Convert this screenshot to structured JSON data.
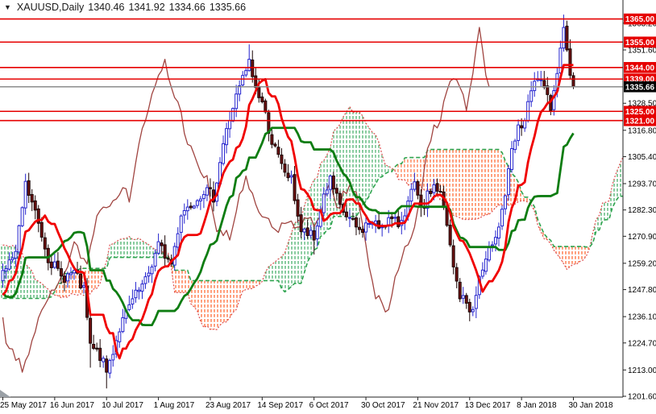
{
  "header": {
    "icon_glyph": "▼",
    "symbol_period": "XAUUSD,Daily",
    "open": "1340.46",
    "high": "1341.92",
    "low": "1334.66",
    "close": "1335.66"
  },
  "colors": {
    "background": "#FFFFFF",
    "axis_line": "#222222",
    "axis_text": "#000000",
    "level_red": "#E60000",
    "level_badge_bg": "#E60000",
    "level_badge_text": "#FFFFFF",
    "current_price_line": "#8C8C8C",
    "current_price_badge_bg": "#000000",
    "current_price_badge_text": "#FFFFFF",
    "bull_body": "#FFFFFF",
    "bull_border": "#2524CE",
    "bear_body": "#6E1111",
    "bear_border": "#1A0505",
    "tenkan_line": "#F00000",
    "kijun_line": "#0E7D12",
    "chikou_line": "#A04440",
    "senkou_a_line": "#DD4F4F",
    "senkou_b_line": "#2FA44F",
    "cloud_up_hatch": "#2FA457",
    "cloud_down_hatch": "#FF5A1E",
    "corner_marker": "#9AA0A6"
  },
  "chart_data": {
    "type": "candlestick",
    "symbol": "XAUUSD",
    "timeframe": "Daily",
    "title": "XAUUSD,Daily 1340.46 1341.92 1334.66 1335.66",
    "indicator": {
      "name": "Ichimoku Kinko Hyo",
      "tenkan": 9,
      "kijun": 26,
      "senkou_b": 52,
      "shift": 26
    },
    "grid": "off",
    "legend_position": "none",
    "y_axis": {
      "side": "right",
      "range": [
        1201.25,
        1367.65
      ],
      "ticks": [
        "1363.20",
        "1351.60",
        "1328.50",
        "1316.80",
        "1305.40",
        "1293.70",
        "1282.30",
        "1270.90",
        "1259.20",
        "1247.80",
        "1236.10",
        "1224.70",
        "1213.00",
        "1201.60"
      ]
    },
    "x_axis": {
      "labels": [
        {
          "text": "25 May 2017",
          "bar": 0
        },
        {
          "text": "16 Jun 2017",
          "bar": 16
        },
        {
          "text": "10 Jul 2017",
          "bar": 32
        },
        {
          "text": "1 Aug 2017",
          "bar": 48
        },
        {
          "text": "23 Aug 2017",
          "bar": 64
        },
        {
          "text": "14 Sep 2017",
          "bar": 80
        },
        {
          "text": "6 Oct 2017",
          "bar": 96
        },
        {
          "text": "30 Oct 2017",
          "bar": 112
        },
        {
          "text": "21 Nov 2017",
          "bar": 128
        },
        {
          "text": "13 Dec 2017",
          "bar": 144
        },
        {
          "text": "8 Jan 2018",
          "bar": 160
        },
        {
          "text": "30 Jan 2018",
          "bar": 176
        }
      ]
    },
    "horizontal_levels": [
      "1365.00",
      "1355.00",
      "1344.00",
      "1339.00",
      "1325.00",
      "1321.00"
    ],
    "current_price": "1335.66",
    "last_candle": {
      "open": 1340.46,
      "high": 1341.92,
      "low": 1334.66,
      "close": 1335.66
    },
    "bars_pre": 78,
    "bars_visible": 177,
    "seed": 7,
    "jitter": 2.6,
    "wick_span": 3.8,
    "close_waypoints": [
      [
        -78,
        1236
      ],
      [
        -70,
        1221
      ],
      [
        -64,
        1202
      ],
      [
        -58,
        1224
      ],
      [
        -50,
        1236
      ],
      [
        -42,
        1256
      ],
      [
        -34,
        1288
      ],
      [
        -28,
        1272
      ],
      [
        -22,
        1254
      ],
      [
        -16,
        1229
      ],
      [
        -10,
        1229
      ],
      [
        -4,
        1247
      ],
      [
        0,
        1256
      ],
      [
        4,
        1263
      ],
      [
        7,
        1293
      ],
      [
        10,
        1281
      ],
      [
        14,
        1262
      ],
      [
        18,
        1253
      ],
      [
        22,
        1255
      ],
      [
        25,
        1247
      ],
      [
        27,
        1223
      ],
      [
        30,
        1219
      ],
      [
        32,
        1212
      ],
      [
        36,
        1231
      ],
      [
        40,
        1243
      ],
      [
        44,
        1251
      ],
      [
        48,
        1267
      ],
      [
        52,
        1259
      ],
      [
        55,
        1281
      ],
      [
        58,
        1285
      ],
      [
        62,
        1291
      ],
      [
        65,
        1288
      ],
      [
        68,
        1311
      ],
      [
        71,
        1327
      ],
      [
        74,
        1339
      ],
      [
        76,
        1346
      ],
      [
        78,
        1335
      ],
      [
        80,
        1329
      ],
      [
        83,
        1312
      ],
      [
        86,
        1301
      ],
      [
        89,
        1295
      ],
      [
        92,
        1273
      ],
      [
        95,
        1271
      ],
      [
        96,
        1269
      ],
      [
        99,
        1289
      ],
      [
        101,
        1295
      ],
      [
        104,
        1283
      ],
      [
        107,
        1278
      ],
      [
        110,
        1273
      ],
      [
        113,
        1277
      ],
      [
        116,
        1275
      ],
      [
        119,
        1278
      ],
      [
        122,
        1276
      ],
      [
        125,
        1285
      ],
      [
        127,
        1293
      ],
      [
        129,
        1281
      ],
      [
        131,
        1288
      ],
      [
        133,
        1293
      ],
      [
        135,
        1289
      ],
      [
        137,
        1275
      ],
      [
        139,
        1257
      ],
      [
        141,
        1245
      ],
      [
        143,
        1242
      ],
      [
        145,
        1238
      ],
      [
        147,
        1253
      ],
      [
        149,
        1259
      ],
      [
        151,
        1269
      ],
      [
        153,
        1276
      ],
      [
        155,
        1289
      ],
      [
        157,
        1307
      ],
      [
        159,
        1317
      ],
      [
        161,
        1321
      ],
      [
        163,
        1333
      ],
      [
        165,
        1340
      ],
      [
        167,
        1333
      ],
      [
        169,
        1328
      ],
      [
        171,
        1341
      ],
      [
        172,
        1353
      ],
      [
        173,
        1362
      ],
      [
        174,
        1351
      ],
      [
        175,
        1341
      ],
      [
        176,
        1335.66
      ]
    ],
    "high_overrides": {
      "7": 1298,
      "76": 1354,
      "173": 1366.9
    },
    "low_overrides": {
      "27": 1214,
      "32": 1205,
      "96": 1263,
      "145": 1236.3
    }
  }
}
